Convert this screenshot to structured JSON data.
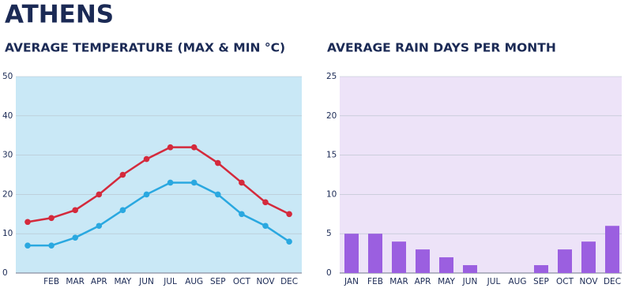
{
  "title": "ATHENS",
  "chart_data": [
    {
      "type": "line",
      "title": "AVERAGE TEMPERATURE (MAX & MIN °C)",
      "categories": [
        null,
        "FEB",
        "MAR",
        "APR",
        "MAY",
        "JUN",
        "JUL",
        "AUG",
        "SEP",
        "OCT",
        "NOV",
        "DEC"
      ],
      "series": [
        {
          "name": "Max",
          "color": "#d42a3c",
          "values": [
            13,
            14,
            16,
            20,
            25,
            29,
            32,
            32,
            28,
            23,
            18,
            15
          ]
        },
        {
          "name": "Min",
          "color": "#2aa8e0",
          "values": [
            7,
            7,
            9,
            12,
            16,
            20,
            23,
            23,
            20,
            15,
            12,
            8
          ]
        }
      ],
      "ylim": [
        0,
        50
      ],
      "yticks": [
        0,
        10,
        20,
        30,
        40,
        50
      ],
      "grid": true,
      "background": "#c9e8f6"
    },
    {
      "type": "bar",
      "title": "AVERAGE RAIN DAYS PER MONTH",
      "categories": [
        "JAN",
        "FEB",
        "MAR",
        "APR",
        "MAY",
        "JUN",
        "JUL",
        "AUG",
        "SEP",
        "OCT",
        "NOV",
        "DEC"
      ],
      "values": [
        5,
        5,
        4,
        3,
        2,
        1,
        0,
        0,
        1,
        3,
        4,
        6
      ],
      "color": "#9b5fe0",
      "ylim": [
        0,
        25
      ],
      "yticks": [
        0,
        5,
        10,
        15,
        20,
        25
      ],
      "grid": true,
      "background": "#ede3f8"
    }
  ]
}
